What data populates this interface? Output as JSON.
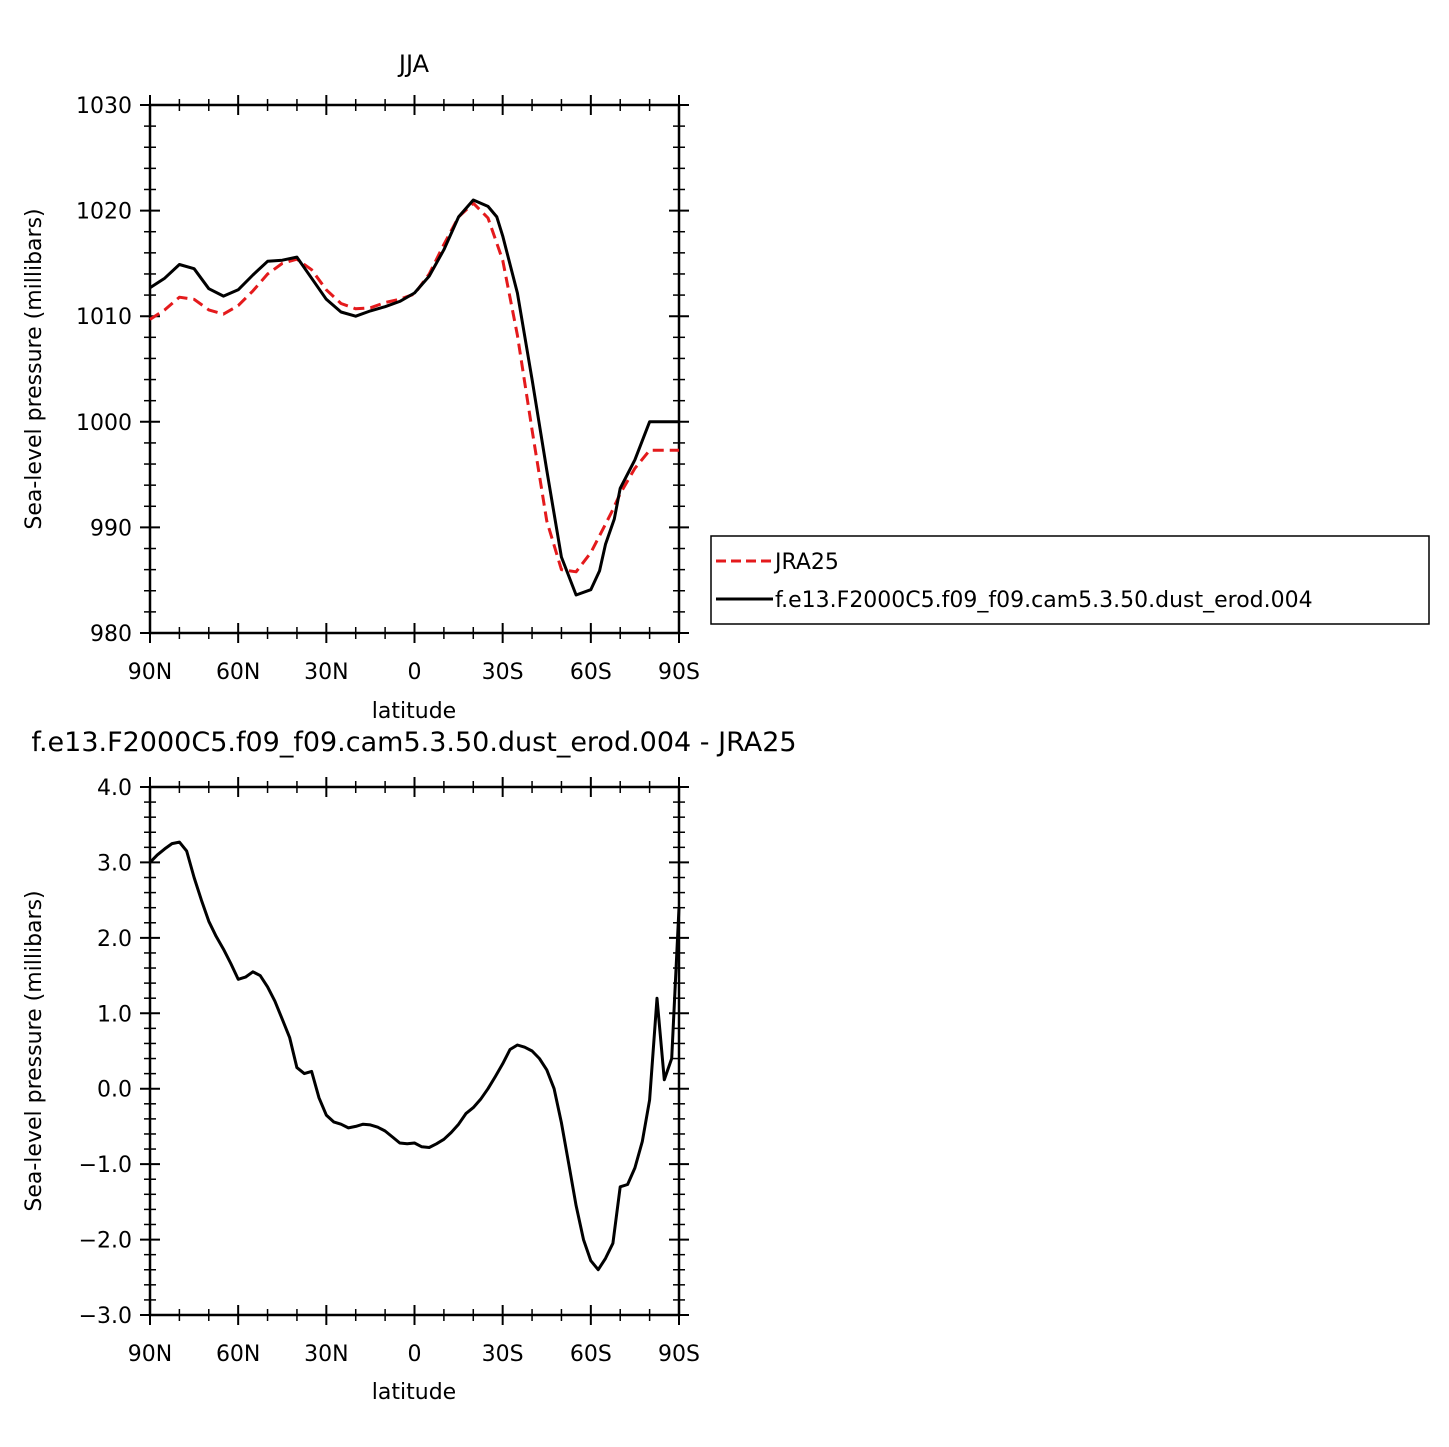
{
  "chart_data": [
    {
      "type": "line",
      "title": "JJA",
      "xlabel": "latitude",
      "ylabel": "Sea-level pressure (millibars)",
      "xlim": [
        90,
        -90
      ],
      "ylim": [
        980,
        1030
      ],
      "xticks": [
        90,
        60,
        30,
        0,
        -30,
        -60,
        -90
      ],
      "xtick_labels": [
        "90N",
        "60N",
        "30N",
        "0",
        "30S",
        "60S",
        "90S"
      ],
      "yticks": [
        980,
        990,
        1000,
        1010,
        1020,
        1030
      ],
      "ytick_labels": [
        "980",
        "990",
        "1000",
        "1010",
        "1020",
        "1030"
      ],
      "legend": {
        "placement": "right-outside"
      },
      "series": [
        {
          "name": "JRA25",
          "color": "#e41a1c",
          "dash": "dashed",
          "x": [
            90,
            85,
            80,
            75,
            70,
            65,
            60,
            55,
            50,
            45,
            40,
            35,
            30,
            25,
            20,
            15,
            10,
            5,
            0,
            -5,
            -10,
            -15,
            -20,
            -25,
            -30,
            -35,
            -40,
            -45,
            -50,
            -55,
            -60,
            -65,
            -67,
            -70,
            -75,
            -80,
            -85,
            -90
          ],
          "y": [
            1009.7,
            1010.6,
            1011.8,
            1011.6,
            1010.6,
            1010.2,
            1011.0,
            1012.4,
            1014.0,
            1015.0,
            1015.4,
            1014.4,
            1012.5,
            1011.2,
            1010.7,
            1010.8,
            1011.3,
            1011.6,
            1012.1,
            1014.0,
            1016.8,
            1019.4,
            1020.7,
            1019.3,
            1015.3,
            1008.2,
            999.2,
            990.6,
            986.0,
            985.8,
            987.6,
            990.3,
            991.4,
            993.2,
            995.6,
            997.3,
            997.3,
            997.3
          ]
        },
        {
          "name": "f.e13.F2000C5.f09_f09.cam5.3.50.dust_erod.004",
          "color": "#000000",
          "dash": "solid",
          "x": [
            90,
            85,
            80,
            75,
            70,
            65,
            60,
            55,
            50,
            45,
            40,
            35,
            30,
            25,
            20,
            15,
            10,
            5,
            0,
            -5,
            -10,
            -15,
            -20,
            -25,
            -28,
            -30,
            -35,
            -40,
            -45,
            -50,
            -55,
            -60,
            -63,
            -65,
            -68,
            -70,
            -75,
            -80,
            -85,
            -88,
            -90
          ],
          "y": [
            1012.7,
            1013.6,
            1014.9,
            1014.5,
            1012.6,
            1011.9,
            1012.5,
            1013.9,
            1015.2,
            1015.3,
            1015.6,
            1013.6,
            1011.6,
            1010.4,
            1010.0,
            1010.5,
            1010.9,
            1011.4,
            1012.2,
            1013.8,
            1016.3,
            1019.4,
            1021.0,
            1020.4,
            1019.4,
            1017.6,
            1012.2,
            1004.0,
            995.4,
            987.2,
            983.6,
            984.1,
            985.9,
            988.4,
            990.8,
            993.7,
            996.4,
            1000.0,
            1000.0,
            1000.0,
            1000.0
          ]
        }
      ]
    },
    {
      "type": "line",
      "title": "f.e13.F2000C5.f09_f09.cam5.3.50.dust_erod.004 - JRA25",
      "xlabel": "latitude",
      "ylabel": "Sea-level pressure (millibars)",
      "xlim": [
        90,
        -90
      ],
      "ylim": [
        -3.0,
        4.0
      ],
      "xticks": [
        90,
        60,
        30,
        0,
        -30,
        -60,
        -90
      ],
      "xtick_labels": [
        "90N",
        "60N",
        "30N",
        "0",
        "30S",
        "60S",
        "90S"
      ],
      "yticks": [
        -3,
        -2,
        -1,
        0,
        1,
        2,
        3,
        4
      ],
      "ytick_labels": [
        "−3.0",
        "−2.0",
        "−1.0",
        "0.0",
        "1.0",
        "2.0",
        "3.0",
        "4.0"
      ],
      "series": [
        {
          "color": "#000000",
          "dash": "solid",
          "x": [
            90,
            87.5,
            85,
            82.5,
            80,
            77.5,
            75,
            72.5,
            70,
            67.5,
            65,
            62.5,
            60,
            57.5,
            55,
            52.5,
            50,
            47.5,
            45,
            42.5,
            40,
            37.5,
            35,
            32.5,
            30,
            27.5,
            25,
            22.5,
            20,
            17.5,
            15,
            12.5,
            10,
            7.5,
            5,
            2.5,
            0,
            -2.5,
            -5,
            -7.5,
            -10,
            -12.5,
            -15,
            -17.5,
            -20,
            -22.5,
            -25,
            -27.5,
            -30,
            -32.5,
            -35,
            -37.5,
            -40,
            -42.5,
            -45,
            -47.5,
            -50,
            -52.5,
            -55,
            -57.5,
            -60,
            -62.5,
            -65,
            -67.5,
            -70,
            -72.5,
            -75,
            -77.5,
            -80,
            -82.5,
            -85,
            -87.5,
            -90
          ],
          "y": [
            3.0,
            3.1,
            3.18,
            3.25,
            3.27,
            3.15,
            2.8,
            2.5,
            2.22,
            2.02,
            1.85,
            1.66,
            1.45,
            1.48,
            1.55,
            1.5,
            1.35,
            1.16,
            0.92,
            0.68,
            0.28,
            0.2,
            0.23,
            -0.12,
            -0.35,
            -0.44,
            -0.47,
            -0.52,
            -0.5,
            -0.47,
            -0.48,
            -0.51,
            -0.56,
            -0.64,
            -0.72,
            -0.73,
            -0.72,
            -0.77,
            -0.78,
            -0.73,
            -0.67,
            -0.58,
            -0.47,
            -0.33,
            -0.25,
            -0.14,
            0.0,
            0.16,
            0.33,
            0.52,
            0.58,
            0.55,
            0.5,
            0.4,
            0.25,
            0.0,
            -0.45,
            -1.0,
            -1.55,
            -2.0,
            -2.28,
            -2.4,
            -2.25,
            -2.05,
            -1.3,
            -1.27,
            -1.05,
            -0.7,
            -0.15,
            1.2,
            0.12,
            0.4,
            2.4
          ]
        }
      ]
    }
  ]
}
